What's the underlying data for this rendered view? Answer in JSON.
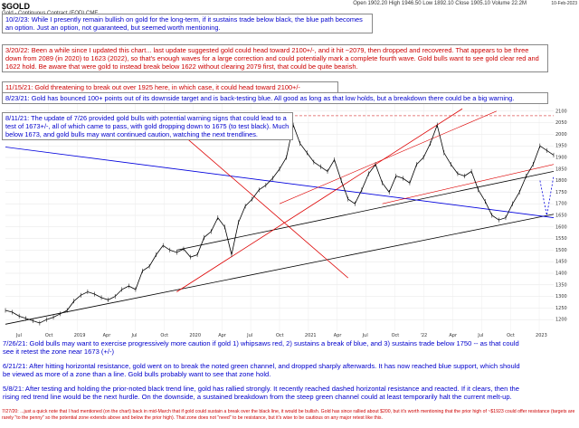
{
  "header": {
    "symbol": "$GOLD",
    "subtitle": "Gold - Continuous Contract (EOD) CME",
    "ohlc": "Open 1902.20  High 1946.50  Low 1892.10  Close 1905.10  Volume 22.2M",
    "stamp": "10-Feb-2023"
  },
  "annotations": [
    {
      "id": "n_10_2_23",
      "color": "blue",
      "text": "10/2/23:  While I presently remain bullish on gold for the long-term, if it sustains trade below black, the blue path becomes an option.  Just an option, not guaranteed, but seemed worth mentioning."
    },
    {
      "id": "n_3_20_22",
      "color": "red",
      "text": "3/20/22:  Been a while since I updated this chart... last update suggested gold could head toward 2100+/-, and it hit ~2079, then dropped and recovered.  That appears to be three down from 2089 (in 2020) to 1623 (2022), so that's enough waves for a large correction and could potentially mark a complete fourth wave.  Gold bulls want to see gold clear red and 1622 hold.  Be aware that were gold to instead break below 1622 without clearing 2079 first, that could be quite bearish."
    },
    {
      "id": "n_11_15_21",
      "color": "red",
      "text": "11/15/21:  Gold threatening to break out over 1925 here, in which case, it could head toward 2100+/-"
    },
    {
      "id": "n_8_23_21",
      "color": "blue",
      "text": "8/23/21:  Gold has bounced 100+ points out of its downside target and is back-testing blue.  All good as long as that low holds, but a breakdown there could be a big warning."
    },
    {
      "id": "n_8_11_21",
      "color": "blue",
      "text": "8/11/21:  The update of 7/26 provided gold bulls with potential warning signs that could lead to a test of 1673+/-, all of which came to pass, with gold dropping down to 1675 (to test black).  Much below 1673, and gold bulls may want continued caution, watching the next trendlines."
    }
  ],
  "footer_notes": [
    {
      "id": "f_7_26_21",
      "color": "blue",
      "text": "7/26/21:  Gold bulls may want to exercise progressively more caution if gold 1) whipsaws red, 2) sustains a break of blue, and 3) sustains trade below 1750 -- as that could see it retest the zone near 1673 (+/-)"
    },
    {
      "id": "f_6_21_21",
      "color": "blue",
      "text": "6/21/21:  After hitting horizontal resistance, gold went on to break the noted green channel, and dropped sharply afterwards.  It has now reached blue support, which should be viewed as more of a zone than a line.  Gold bulls probably want to see that zone hold."
    },
    {
      "id": "f_5_8_21",
      "color": "blue",
      "text": "5/8/21:  After testing and holding the prior-noted black trend line, gold has rallied strongly.  It recently reached dashed horizontal resistance and reacted.  If it clears, then the rising red trend line would be the next hurdle.  On the downside, a sustained breakdown from the steep green channel could at least temporarily halt the current melt-up."
    }
  ],
  "footer_fine": "7/27/20: ...just a quick note that I had mentioned (on the chart) back in mid-March that if gold could sustain a break over the black line, it would be bullish.  Gold has since rallied about $200, but it's worth mentioning that the prior high of ~$1923 could offer resistance (targets are rarely \"to the penny\" so the potential zone extends above and below the prior high).  That zone does not \"need\" to be resistance, but it's wise to be cautious on any major retest like this.",
  "chart_data": {
    "type": "line",
    "title": "$GOLD",
    "xlabel": "",
    "ylabel": "",
    "ylim": [
      1150,
      2150
    ],
    "y_ticks": [
      1200,
      1250,
      1300,
      1350,
      1400,
      1450,
      1500,
      1550,
      1600,
      1650,
      1700,
      1750,
      1800,
      1850,
      1900,
      1950,
      2000,
      2050,
      2100
    ],
    "x_ticks": [
      "Jul",
      "Oct",
      "2019",
      "Apr",
      "Jul",
      "Oct",
      "2020",
      "Apr",
      "Jul",
      "Oct",
      "2021",
      "Apr",
      "Jul",
      "Oct",
      "'22",
      "Apr",
      "Jul",
      "Oct",
      "2023"
    ],
    "x": [
      0,
      6,
      12,
      18,
      24,
      30,
      36,
      42,
      48,
      54,
      60,
      66,
      72,
      78,
      84,
      90,
      96,
      102,
      108,
      114,
      120,
      126,
      132,
      138,
      144,
      150,
      156,
      162,
      168,
      174,
      180,
      186,
      192,
      198,
      204,
      210,
      216,
      222,
      228,
      234,
      240,
      246,
      252,
      258,
      264,
      270,
      276,
      282,
      288,
      294,
      300,
      306,
      312,
      318,
      324,
      330,
      336,
      342,
      348,
      354,
      360,
      366,
      372,
      378,
      384,
      390,
      396,
      402,
      408,
      414,
      420,
      426,
      432,
      438,
      444,
      450,
      456,
      462,
      468,
      474,
      480
    ],
    "series": [
      {
        "name": "",
        "values": [
          1240,
          1232,
          1215,
          1205,
          1195,
          1185,
          1200,
          1210,
          1225,
          1240,
          1280,
          1305,
          1320,
          1310,
          1295,
          1285,
          1300,
          1330,
          1345,
          1330,
          1410,
          1430,
          1480,
          1520,
          1500,
          1490,
          1505,
          1470,
          1480,
          1555,
          1580,
          1640,
          1600,
          1480,
          1620,
          1690,
          1720,
          1760,
          1780,
          1810,
          1850,
          1900,
          2040,
          1960,
          1920,
          1880,
          1860,
          1840,
          1890,
          1800,
          1720,
          1700,
          1760,
          1830,
          1870,
          1790,
          1750,
          1820,
          1810,
          1790,
          1870,
          1900,
          1960,
          2040,
          1920,
          1870,
          1830,
          1820,
          1840,
          1760,
          1710,
          1650,
          1630,
          1640,
          1700,
          1750,
          1820,
          1870,
          1950,
          1930,
          1910
        ]
      },
      {
        "name": "",
        "values": [
          null,
          null,
          null,
          null,
          null,
          null,
          null,
          null,
          null,
          null,
          null,
          null,
          null,
          null,
          null,
          null,
          null,
          null,
          null,
          null,
          null,
          null,
          null,
          null,
          null,
          null,
          null,
          null,
          null,
          null,
          null,
          null,
          null,
          null,
          null,
          null,
          null,
          null,
          null,
          null,
          null,
          null,
          null,
          null,
          null,
          null,
          null,
          null,
          null,
          null,
          null,
          null,
          null,
          null,
          null,
          null,
          null,
          null,
          null,
          null,
          null,
          null,
          null,
          null,
          null,
          null,
          null,
          null,
          null,
          null,
          null,
          null,
          null,
          null,
          null,
          null,
          null,
          null,
          1800,
          1650,
          1820
        ]
      }
    ]
  },
  "colors": {
    "price": "#000000",
    "red": "#dd0000",
    "blue": "#0000dd",
    "black": "#000000",
    "dashed": "#cc0000"
  }
}
